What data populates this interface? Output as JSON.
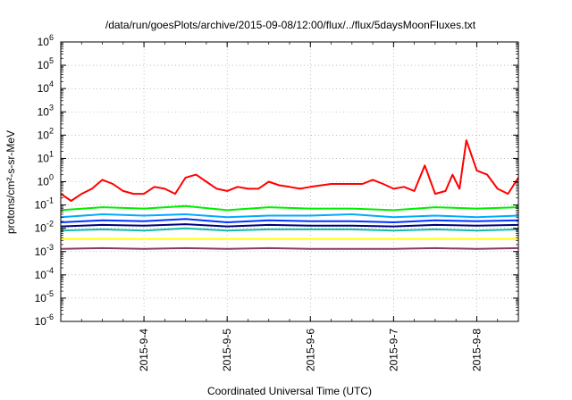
{
  "chart_data": {
    "type": "line",
    "title": "/data/run/goesPlots/archive/2015-09-08/12:00/flux/../flux/5daysMoonFluxes.txt",
    "xlabel": "Coordinated Universal Time (UTC)",
    "ylabel": "protons/cm²-s-sr-MeV",
    "y_scale": "log",
    "ylim": [
      1e-06,
      1000000.0
    ],
    "xlim": [
      "2015-09-03 00:00",
      "2015-09-08 12:00"
    ],
    "x_tick_labels": [
      "2015-9-4",
      "2015-9-5",
      "2015-9-6",
      "2015-9-7",
      "2015-9-8"
    ],
    "y_tick_labels": [
      {
        "base": "10",
        "exp": "-6"
      },
      {
        "base": "10",
        "exp": "-5"
      },
      {
        "base": "10",
        "exp": "-4"
      },
      {
        "base": "10",
        "exp": "-3"
      },
      {
        "base": "10",
        "exp": "-2"
      },
      {
        "base": "10",
        "exp": "-1"
      },
      {
        "base": "10",
        "exp": "0"
      },
      {
        "base": "10",
        "exp": "1"
      },
      {
        "base": "10",
        "exp": "2"
      },
      {
        "base": "10",
        "exp": "3"
      },
      {
        "base": "10",
        "exp": "4"
      },
      {
        "base": "10",
        "exp": "5"
      },
      {
        "base": "10",
        "exp": "6"
      }
    ],
    "grid": true,
    "series": [
      {
        "color": "#ff0000",
        "x": [
          "2015-09-03 00:00",
          "2015-09-03 03:00",
          "2015-09-03 06:00",
          "2015-09-03 09:00",
          "2015-09-03 12:00",
          "2015-09-03 15:00",
          "2015-09-03 18:00",
          "2015-09-03 21:00",
          "2015-09-04 00:00",
          "2015-09-04 03:00",
          "2015-09-04 06:00",
          "2015-09-04 09:00",
          "2015-09-04 12:00",
          "2015-09-04 15:00",
          "2015-09-04 18:00",
          "2015-09-04 21:00",
          "2015-09-05 00:00",
          "2015-09-05 03:00",
          "2015-09-05 06:00",
          "2015-09-05 09:00",
          "2015-09-05 12:00",
          "2015-09-05 15:00",
          "2015-09-05 18:00",
          "2015-09-05 21:00",
          "2015-09-06 00:00",
          "2015-09-06 06:00",
          "2015-09-06 12:00",
          "2015-09-06 15:00",
          "2015-09-06 18:00",
          "2015-09-06 21:00",
          "2015-09-07 00:00",
          "2015-09-07 03:00",
          "2015-09-07 06:00",
          "2015-09-07 09:00",
          "2015-09-07 12:00",
          "2015-09-07 15:00",
          "2015-09-07 17:00",
          "2015-09-07 19:00",
          "2015-09-07 21:00",
          "2015-09-08 00:00",
          "2015-09-08 03:00",
          "2015-09-08 06:00",
          "2015-09-08 09:00",
          "2015-09-08 12:00"
        ],
        "values": [
          0.3,
          0.15,
          0.3,
          0.5,
          1.2,
          0.8,
          0.4,
          0.3,
          0.3,
          0.6,
          0.5,
          0.3,
          1.5,
          2.0,
          1.0,
          0.5,
          0.4,
          0.6,
          0.5,
          0.5,
          1.0,
          0.7,
          0.6,
          0.5,
          0.6,
          0.8,
          0.8,
          0.8,
          1.2,
          0.8,
          0.5,
          0.6,
          0.4,
          5.0,
          0.3,
          0.4,
          2.0,
          0.5,
          60,
          3.0,
          2.0,
          0.5,
          0.3,
          1.5
        ]
      },
      {
        "color": "#00ee00",
        "x": [
          "2015-09-03 00:00",
          "2015-09-03 12:00",
          "2015-09-04 00:00",
          "2015-09-04 12:00",
          "2015-09-05 00:00",
          "2015-09-05 12:00",
          "2015-09-06 00:00",
          "2015-09-06 12:00",
          "2015-09-07 00:00",
          "2015-09-07 12:00",
          "2015-09-08 00:00",
          "2015-09-08 12:00"
        ],
        "values": [
          0.06,
          0.08,
          0.07,
          0.09,
          0.06,
          0.08,
          0.07,
          0.07,
          0.06,
          0.08,
          0.07,
          0.08
        ]
      },
      {
        "color": "#00aaff",
        "x": [
          "2015-09-03 00:00",
          "2015-09-03 12:00",
          "2015-09-04 00:00",
          "2015-09-04 12:00",
          "2015-09-05 00:00",
          "2015-09-05 12:00",
          "2015-09-06 00:00",
          "2015-09-06 12:00",
          "2015-09-07 00:00",
          "2015-09-07 12:00",
          "2015-09-08 00:00",
          "2015-09-08 12:00"
        ],
        "values": [
          0.03,
          0.04,
          0.035,
          0.04,
          0.03,
          0.035,
          0.035,
          0.04,
          0.03,
          0.035,
          0.03,
          0.035
        ]
      },
      {
        "color": "#0033ff",
        "x": [
          "2015-09-03 00:00",
          "2015-09-03 12:00",
          "2015-09-04 00:00",
          "2015-09-04 12:00",
          "2015-09-05 00:00",
          "2015-09-05 12:00",
          "2015-09-06 00:00",
          "2015-09-06 12:00",
          "2015-09-07 00:00",
          "2015-09-07 12:00",
          "2015-09-08 00:00",
          "2015-09-08 12:00"
        ],
        "values": [
          0.018,
          0.022,
          0.02,
          0.025,
          0.018,
          0.022,
          0.02,
          0.02,
          0.018,
          0.022,
          0.02,
          0.022
        ]
      },
      {
        "color": "#00007a",
        "x": [
          "2015-09-03 00:00",
          "2015-09-03 12:00",
          "2015-09-04 00:00",
          "2015-09-04 12:00",
          "2015-09-05 00:00",
          "2015-09-05 12:00",
          "2015-09-06 00:00",
          "2015-09-06 12:00",
          "2015-09-07 00:00",
          "2015-09-07 12:00",
          "2015-09-08 00:00",
          "2015-09-08 12:00"
        ],
        "values": [
          0.012,
          0.014,
          0.013,
          0.015,
          0.012,
          0.014,
          0.013,
          0.013,
          0.012,
          0.014,
          0.013,
          0.014
        ]
      },
      {
        "color": "#11bbaa",
        "x": [
          "2015-09-03 00:00",
          "2015-09-03 12:00",
          "2015-09-04 00:00",
          "2015-09-04 12:00",
          "2015-09-05 00:00",
          "2015-09-05 12:00",
          "2015-09-06 00:00",
          "2015-09-06 12:00",
          "2015-09-07 00:00",
          "2015-09-07 12:00",
          "2015-09-08 00:00",
          "2015-09-08 12:00"
        ],
        "values": [
          0.008,
          0.009,
          0.008,
          0.01,
          0.008,
          0.009,
          0.009,
          0.009,
          0.008,
          0.009,
          0.008,
          0.009
        ]
      },
      {
        "color": "#ffff00",
        "x": [
          "2015-09-03 00:00",
          "2015-09-03 12:00",
          "2015-09-04 00:00",
          "2015-09-04 12:00",
          "2015-09-05 00:00",
          "2015-09-05 12:00",
          "2015-09-06 00:00",
          "2015-09-06 12:00",
          "2015-09-07 00:00",
          "2015-09-07 12:00",
          "2015-09-08 00:00",
          "2015-09-08 12:00"
        ],
        "values": [
          0.0035,
          0.0035,
          0.0035,
          0.0035,
          0.0035,
          0.0035,
          0.0035,
          0.0035,
          0.0035,
          0.0035,
          0.0035,
          0.0035
        ]
      },
      {
        "color": "#8b3a62",
        "x": [
          "2015-09-03 00:00",
          "2015-09-03 12:00",
          "2015-09-04 00:00",
          "2015-09-04 12:00",
          "2015-09-05 00:00",
          "2015-09-05 12:00",
          "2015-09-06 00:00",
          "2015-09-06 12:00",
          "2015-09-07 00:00",
          "2015-09-07 12:00",
          "2015-09-08 00:00",
          "2015-09-08 12:00"
        ],
        "values": [
          0.0013,
          0.0014,
          0.0013,
          0.0014,
          0.0013,
          0.0014,
          0.0013,
          0.0013,
          0.0013,
          0.0014,
          0.0013,
          0.0014
        ]
      }
    ]
  }
}
